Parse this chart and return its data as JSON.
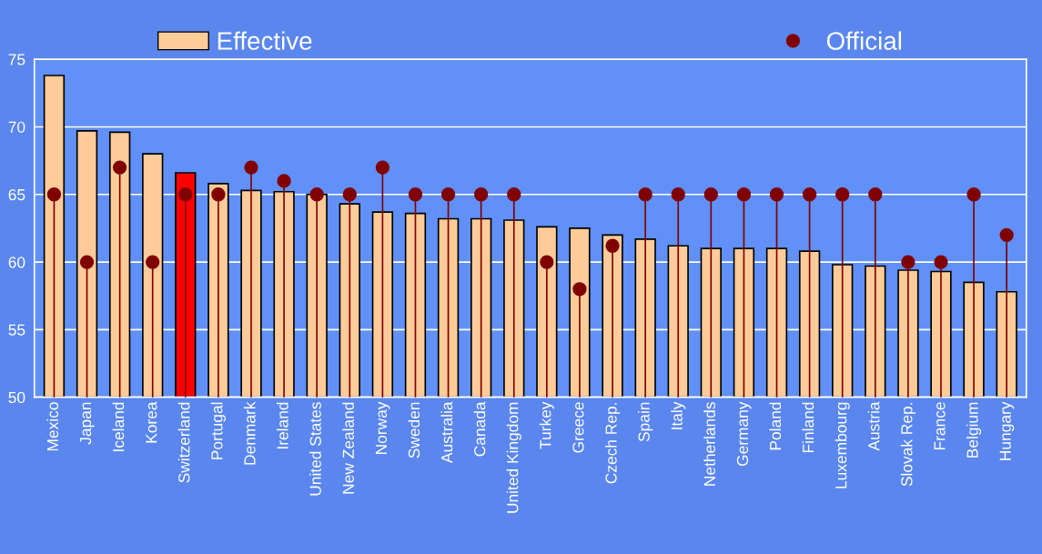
{
  "chart_data": {
    "type": "bar",
    "categories": [
      "Mexico",
      "Japan",
      "Iceland",
      "Korea",
      "Switzerland",
      "Portugal",
      "Denmark",
      "Ireland",
      "United States",
      "New Zealand",
      "Norway",
      "Sweden",
      "Australia",
      "Canada",
      "United Kingdom",
      "Turkey",
      "Greece",
      "Czech Rep.",
      "Spain",
      "Italy",
      "Netherlands",
      "Germany",
      "Poland",
      "Finland",
      "Luxembourg",
      "Austria",
      "Slovak Rep.",
      "France",
      "Belgium",
      "Hungary"
    ],
    "series": [
      {
        "name": "Effective",
        "color": "#ffcc99",
        "colors": [
          "#ffcc99",
          "#ffcc99",
          "#ffcc99",
          "#ffcc99",
          "#ff0000",
          "#ffcc99",
          "#ffcc99",
          "#ffcc99",
          "#ffcc99",
          "#ffcc99",
          "#ffcc99",
          "#ffcc99",
          "#ffcc99",
          "#ffcc99",
          "#ffcc99",
          "#ffcc99",
          "#ffcc99",
          "#ffcc99",
          "#ffcc99",
          "#ffcc99",
          "#ffcc99",
          "#ffcc99",
          "#ffcc99",
          "#ffcc99",
          "#ffcc99",
          "#ffcc99",
          "#ffcc99",
          "#ffcc99",
          "#ffcc99",
          "#ffcc99"
        ],
        "values": [
          73.8,
          69.7,
          69.6,
          68.0,
          66.6,
          65.8,
          65.3,
          65.2,
          65.0,
          64.3,
          63.7,
          63.6,
          63.2,
          63.2,
          63.1,
          62.6,
          62.5,
          62.0,
          61.7,
          61.2,
          61.0,
          61.0,
          61.0,
          60.8,
          59.8,
          59.7,
          59.4,
          59.3,
          58.5,
          57.8
        ]
      },
      {
        "name": "Official",
        "type": "lollipop",
        "color": "#800000",
        "marker": "circle",
        "values": [
          65,
          60,
          67,
          60,
          65,
          65,
          67,
          66,
          65,
          65,
          67,
          65,
          65,
          65,
          65,
          60,
          58,
          61.2,
          65,
          65,
          65,
          65,
          65,
          65,
          65,
          65,
          60,
          60,
          65,
          62
        ]
      }
    ],
    "ylim": [
      50,
      75
    ],
    "yticks": [
      50,
      55,
      60,
      65,
      70,
      75
    ],
    "grid": "y",
    "legend": "top"
  }
}
